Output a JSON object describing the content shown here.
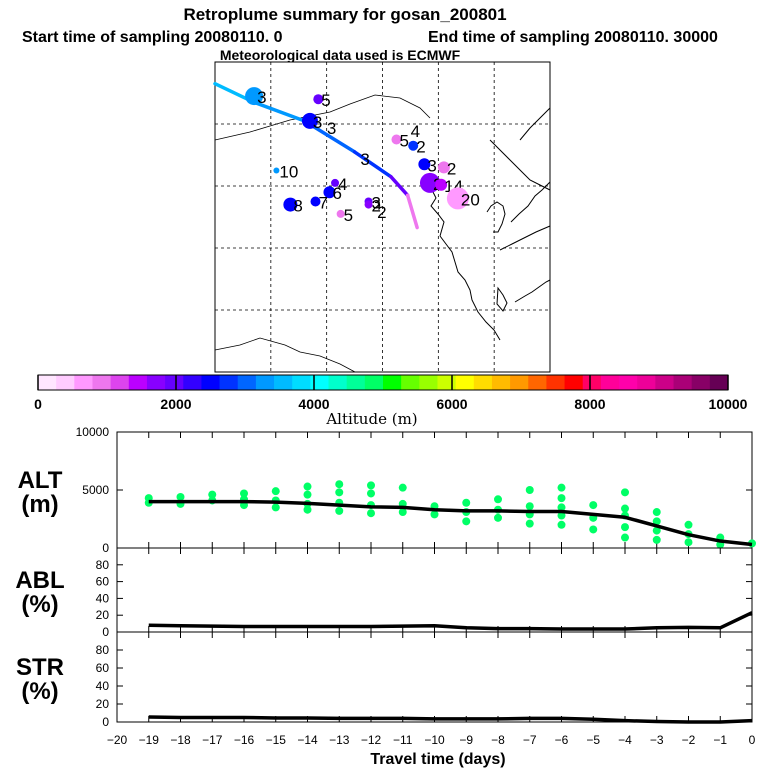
{
  "header": {
    "title": "Retroplume summary for gosan_200801",
    "start_sampling": "Start time of sampling 20080110.    0",
    "end_sampling": "End time of sampling 20080110. 30000",
    "met_data": "Meteorological data used is ECMWF"
  },
  "colorbar": {
    "label": "Altitude (m)",
    "tick_labels": [
      "0",
      "2000",
      "4000",
      "6000",
      "8000",
      "10000"
    ],
    "range": [
      0,
      10000
    ],
    "colors": [
      "#ffe6ff",
      "#ffccff",
      "#ff99ff",
      "#ee77ee",
      "#dd44ee",
      "#bb00ff",
      "#8800ff",
      "#6600ff",
      "#3300ff",
      "#0000ff",
      "#0033ff",
      "#0066ff",
      "#0099ff",
      "#00bbff",
      "#00ddff",
      "#00ffff",
      "#00ffcc",
      "#00ff99",
      "#00ff66",
      "#00ff00",
      "#66ff00",
      "#99ff00",
      "#ccff00",
      "#ffff00",
      "#ffdd00",
      "#ffbb00",
      "#ff9900",
      "#ff6600",
      "#ff3300",
      "#ff0000",
      "#ff0066",
      "#ff0099",
      "#ff00aa",
      "#ee0099",
      "#cc0088",
      "#aa0077",
      "#880066",
      "#660055"
    ]
  },
  "map": {
    "lon_range": [
      90,
      150
    ],
    "lat_range": [
      10,
      60
    ],
    "gridlines_lon": [
      100,
      110,
      120,
      130,
      140
    ],
    "gridlines_lat": [
      20,
      30,
      40,
      50
    ],
    "trajectory": [
      {
        "lon": 90.0,
        "lat": 56.5,
        "alt": 3600
      },
      {
        "lon": 97.0,
        "lat": 53.5,
        "alt": 3500
      },
      {
        "lon": 106.0,
        "lat": 50.5,
        "alt": 3200
      },
      {
        "lon": 115.0,
        "lat": 45.5,
        "alt": 2900
      },
      {
        "lon": 121.5,
        "lat": 41.5,
        "alt": 2400
      },
      {
        "lon": 124.5,
        "lat": 38.5,
        "alt": 1500
      },
      {
        "lon": 126.2,
        "lat": 33.3,
        "alt": 200
      }
    ],
    "markers": [
      {
        "lon": 97.0,
        "lat": 54.5,
        "alt": 3400,
        "label": "3",
        "size": 9
      },
      {
        "lon": 108.5,
        "lat": 54.0,
        "alt": 2100,
        "label": "5",
        "size": 5
      },
      {
        "lon": 107.0,
        "lat": 50.5,
        "alt": 2600,
        "label": "3",
        "size": 8
      },
      {
        "lon": 109.5,
        "lat": 49.5,
        "alt": 2300,
        "label": "3",
        "size": 0
      },
      {
        "lon": 122.5,
        "lat": 47.5,
        "alt": 800,
        "label": "5",
        "size": 5
      },
      {
        "lon": 124.5,
        "lat": 49.0,
        "alt": 800,
        "label": "4",
        "size": 0
      },
      {
        "lon": 125.5,
        "lat": 46.5,
        "alt": 2800,
        "label": "2",
        "size": 5
      },
      {
        "lon": 115.5,
        "lat": 44.5,
        "alt": 2300,
        "label": "3",
        "size": 0
      },
      {
        "lon": 127.5,
        "lat": 43.5,
        "alt": 2500,
        "label": "3",
        "size": 6
      },
      {
        "lon": 131.0,
        "lat": 43.0,
        "alt": 800,
        "label": "2",
        "size": 6
      },
      {
        "lon": 101.0,
        "lat": 42.5,
        "alt": 3200,
        "label": "10",
        "size": 3
      },
      {
        "lon": 111.5,
        "lat": 40.5,
        "alt": 2100,
        "label": "4",
        "size": 4
      },
      {
        "lon": 110.5,
        "lat": 39.0,
        "alt": 2500,
        "label": "6",
        "size": 6
      },
      {
        "lon": 108.0,
        "lat": 37.5,
        "alt": 2400,
        "label": "7",
        "size": 5
      },
      {
        "lon": 103.5,
        "lat": 37.0,
        "alt": 2500,
        "label": "8",
        "size": 7
      },
      {
        "lon": 117.5,
        "lat": 37.5,
        "alt": 1900,
        "label": "3",
        "size": 4
      },
      {
        "lon": 118.5,
        "lat": 36.0,
        "alt": 1500,
        "label": "2",
        "size": 0
      },
      {
        "lon": 117.5,
        "lat": 37.0,
        "alt": 1800,
        "label": "2",
        "size": 4
      },
      {
        "lon": 112.5,
        "lat": 35.5,
        "alt": 900,
        "label": "5",
        "size": 4
      },
      {
        "lon": 128.5,
        "lat": 40.5,
        "alt": 1700,
        "label": "2",
        "size": 10
      },
      {
        "lon": 130.5,
        "lat": 40.2,
        "alt": 1400,
        "label": "14",
        "size": 6
      },
      {
        "lon": 133.5,
        "lat": 38.0,
        "alt": 600,
        "label": "20",
        "size": 11
      }
    ]
  },
  "chart_data": [
    {
      "type": "line",
      "panel": "ALT",
      "ylabel": "ALT\n(m)",
      "ylabel_lines": [
        "ALT",
        "(m)"
      ],
      "ylim": [
        0,
        10000
      ],
      "yticks": [
        0,
        5000,
        10000
      ],
      "ytick_labels": [
        "0",
        "5000",
        "10000"
      ],
      "x": [
        -19,
        -18,
        -17,
        -16,
        -15,
        -14,
        -13,
        -12,
        -11,
        -10,
        -9,
        -8,
        -7,
        -6,
        -5,
        -4,
        -3,
        -2,
        -1,
        0
      ],
      "values": [
        4000,
        4000,
        4000,
        4000,
        3950,
        3850,
        3700,
        3550,
        3500,
        3300,
        3200,
        3200,
        3150,
        3150,
        2900,
        2650,
        1900,
        1150,
        600,
        300
      ],
      "scatter": [
        {
          "x": -19,
          "y": 3900
        },
        {
          "x": -19,
          "y": 4300
        },
        {
          "x": -18,
          "y": 3800
        },
        {
          "x": -18,
          "y": 4400
        },
        {
          "x": -17,
          "y": 4100
        },
        {
          "x": -17,
          "y": 4600
        },
        {
          "x": -16,
          "y": 3700
        },
        {
          "x": -16,
          "y": 4200
        },
        {
          "x": -16,
          "y": 4700
        },
        {
          "x": -15,
          "y": 3500
        },
        {
          "x": -15,
          "y": 4100
        },
        {
          "x": -15,
          "y": 4900
        },
        {
          "x": -14,
          "y": 3300
        },
        {
          "x": -14,
          "y": 3800
        },
        {
          "x": -14,
          "y": 4600
        },
        {
          "x": -14,
          "y": 5300
        },
        {
          "x": -13,
          "y": 3200
        },
        {
          "x": -13,
          "y": 3900
        },
        {
          "x": -13,
          "y": 4800
        },
        {
          "x": -13,
          "y": 5500
        },
        {
          "x": -12,
          "y": 3000
        },
        {
          "x": -12,
          "y": 3700
        },
        {
          "x": -12,
          "y": 4700
        },
        {
          "x": -12,
          "y": 5400
        },
        {
          "x": -11,
          "y": 3100
        },
        {
          "x": -11,
          "y": 3800
        },
        {
          "x": -11,
          "y": 5200
        },
        {
          "x": -10,
          "y": 2900
        },
        {
          "x": -10,
          "y": 3600
        },
        {
          "x": -9,
          "y": 2300
        },
        {
          "x": -9,
          "y": 3100
        },
        {
          "x": -9,
          "y": 3900
        },
        {
          "x": -8,
          "y": 2600
        },
        {
          "x": -8,
          "y": 3300
        },
        {
          "x": -8,
          "y": 4200
        },
        {
          "x": -7,
          "y": 2100
        },
        {
          "x": -7,
          "y": 2900
        },
        {
          "x": -7,
          "y": 3600
        },
        {
          "x": -7,
          "y": 5000
        },
        {
          "x": -6,
          "y": 2000
        },
        {
          "x": -6,
          "y": 2800
        },
        {
          "x": -6,
          "y": 3500
        },
        {
          "x": -6,
          "y": 4300
        },
        {
          "x": -6,
          "y": 5200
        },
        {
          "x": -5,
          "y": 1600
        },
        {
          "x": -5,
          "y": 2600
        },
        {
          "x": -5,
          "y": 3700
        },
        {
          "x": -4,
          "y": 900
        },
        {
          "x": -4,
          "y": 1800
        },
        {
          "x": -4,
          "y": 2800
        },
        {
          "x": -4,
          "y": 3400
        },
        {
          "x": -4,
          "y": 4800
        },
        {
          "x": -3,
          "y": 700
        },
        {
          "x": -3,
          "y": 1500
        },
        {
          "x": -3,
          "y": 2300
        },
        {
          "x": -3,
          "y": 3100
        },
        {
          "x": -2,
          "y": 500
        },
        {
          "x": -2,
          "y": 1200
        },
        {
          "x": -2,
          "y": 2000
        },
        {
          "x": -1,
          "y": 300
        },
        {
          "x": -1,
          "y": 900
        },
        {
          "x": 0,
          "y": 400
        }
      ],
      "scatter_color": "#00ff66"
    },
    {
      "type": "line",
      "panel": "ABL",
      "ylabel": "ABL\n(%)",
      "ylabel_lines": [
        "ABL",
        "(%)"
      ],
      "ylim": [
        0,
        100
      ],
      "yticks": [
        0,
        20,
        40,
        60,
        80
      ],
      "ytick_labels": [
        "0",
        "20",
        "40",
        "60",
        "80"
      ],
      "x": [
        -19,
        -18,
        -17,
        -16,
        -15,
        -14,
        -13,
        -12,
        -11,
        -10,
        -9,
        -8,
        -7,
        -6,
        -5,
        -4,
        -3,
        -2,
        -1,
        0
      ],
      "values": [
        8,
        7.5,
        7,
        6.5,
        6.5,
        6.5,
        6.5,
        6.5,
        7,
        7.5,
        5,
        4,
        4,
        3.5,
        3.5,
        3.5,
        5,
        5.5,
        5,
        23
      ]
    },
    {
      "type": "line",
      "panel": "STR",
      "ylabel": "STR\n(%)",
      "ylabel_lines": [
        "STR",
        "(%)"
      ],
      "ylim": [
        0,
        100
      ],
      "yticks": [
        0,
        20,
        40,
        60,
        80
      ],
      "ytick_labels": [
        "0",
        "20",
        "40",
        "60",
        "80"
      ],
      "x": [
        -19,
        -18,
        -17,
        -16,
        -15,
        -14,
        -13,
        -12,
        -11,
        -10,
        -9,
        -8,
        -7,
        -6,
        -5,
        -4,
        -3,
        -2,
        -1,
        0
      ],
      "values": [
        5.5,
        5,
        5,
        5,
        4.5,
        4.5,
        4,
        4,
        4,
        3.5,
        3.5,
        3.5,
        4,
        4,
        3,
        1.5,
        0.5,
        0,
        0,
        1.5
      ]
    }
  ],
  "xaxis": {
    "label": "Travel time (days)",
    "ticks": [
      -20,
      -19,
      -18,
      -17,
      -16,
      -15,
      -14,
      -13,
      -12,
      -11,
      -10,
      -9,
      -8,
      -7,
      -6,
      -5,
      -4,
      -3,
      -2,
      -1,
      0
    ],
    "tick_labels": [
      "−20",
      "−19",
      "−18",
      "−17",
      "−16",
      "−15",
      "−14",
      "−13",
      "−12",
      "−11",
      "−10",
      "−9",
      "−8",
      "−7",
      "−6",
      "−5",
      "−4",
      "−3",
      "−2",
      "−1",
      "0"
    ]
  }
}
